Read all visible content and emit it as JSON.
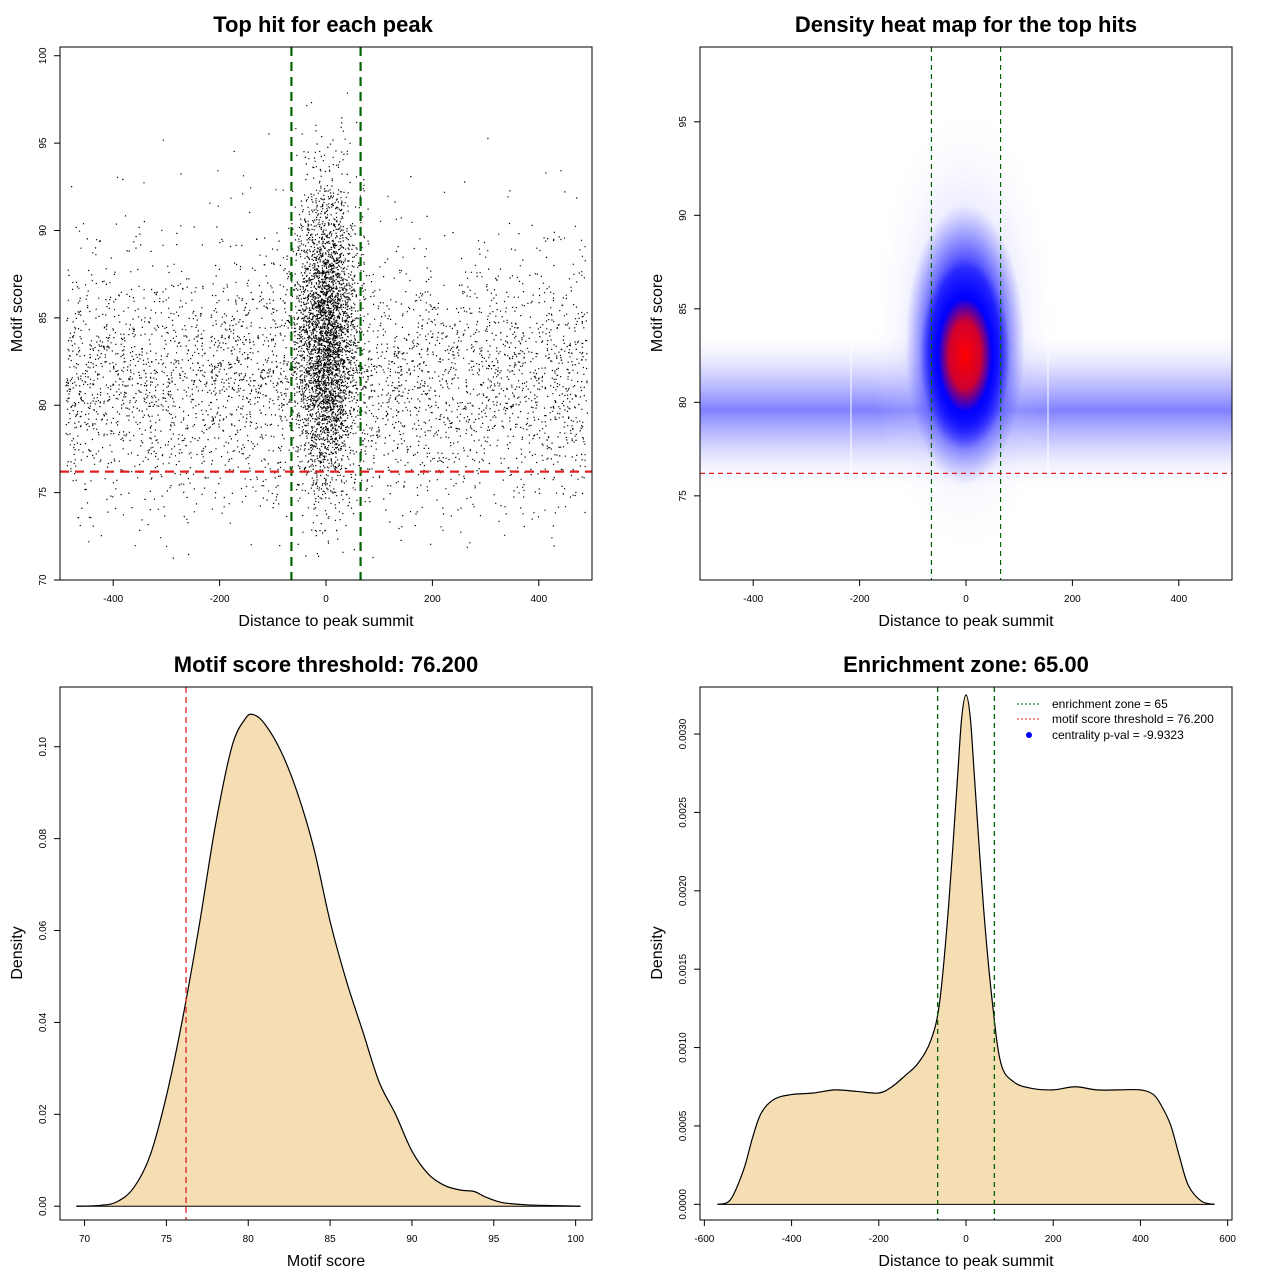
{
  "colors": {
    "threshold_line": "#e02020",
    "zone_line": "#006400",
    "density_fill": "#f5deb3",
    "heat_low": "#ffffff",
    "heat_mid": "#0000ff",
    "heat_high": "#ff0000",
    "legend_point": "#0000ff"
  },
  "chart_data": [
    {
      "id": "scatter",
      "type": "scatter",
      "title": "Top hit for each peak",
      "xlabel": "Distance to peak summit",
      "ylabel": "Motif score",
      "xlim": [
        -500,
        500
      ],
      "ylim": [
        70,
        100.5
      ],
      "xticks": [
        -400,
        -200,
        0,
        200,
        400
      ],
      "yticks": [
        70,
        75,
        80,
        85,
        90,
        95,
        100
      ],
      "hlines": [
        76.2
      ],
      "vlines": [
        -65,
        65
      ],
      "points_description_series": [
        {
          "name": "",
          "x_range": [
            -490,
            490
          ],
          "y_center": 81,
          "central_cluster_x": [
            -60,
            60
          ],
          "central_cluster_y_center": 84
        }
      ]
    },
    {
      "id": "heatmap",
      "type": "heatmap",
      "title": "Density heat map for the top hits",
      "xlabel": "Distance to peak summit",
      "ylabel": "Motif score",
      "xlim": [
        -500,
        500
      ],
      "ylim": [
        70.5,
        99
      ],
      "xticks": [
        -400,
        -200,
        0,
        200,
        400
      ],
      "yticks": [
        75,
        80,
        85,
        90,
        95
      ],
      "hlines": [
        76.2
      ],
      "vlines": [
        -65,
        65
      ],
      "hotspot": {
        "x": 0,
        "y": 82.8
      }
    },
    {
      "id": "score_density",
      "type": "area",
      "title": "Motif score threshold: 76.200",
      "xlabel": "Motif score",
      "ylabel": "Density",
      "xlim": [
        68.5,
        101
      ],
      "ylim": [
        -0.003,
        0.113
      ],
      "xticks": [
        70,
        75,
        80,
        85,
        90,
        95,
        100
      ],
      "yticks": [
        0.0,
        0.02,
        0.04,
        0.06,
        0.08,
        0.1
      ],
      "ytick_labels": [
        "0.00",
        "0.02",
        "0.04",
        "0.06",
        "0.08",
        "0.10"
      ],
      "vlines": [
        76.2
      ],
      "x": [
        69.5,
        71,
        72,
        73,
        74,
        75,
        76,
        77,
        78,
        79,
        79.8,
        80.3,
        81,
        82,
        83,
        84,
        85,
        86,
        87,
        88,
        89,
        90,
        91,
        92,
        93,
        93.8,
        94.5,
        95.5,
        97,
        99,
        100.3
      ],
      "y": [
        0.0,
        0.0002,
        0.001,
        0.004,
        0.011,
        0.024,
        0.041,
        0.061,
        0.083,
        0.1,
        0.106,
        0.107,
        0.105,
        0.099,
        0.09,
        0.078,
        0.062,
        0.049,
        0.038,
        0.027,
        0.02,
        0.012,
        0.007,
        0.0045,
        0.0035,
        0.0032,
        0.002,
        0.0008,
        0.0003,
        0.0001,
        0.0
      ]
    },
    {
      "id": "distance_density",
      "type": "area",
      "title": "Enrichment zone: 65.00",
      "xlabel": "Distance to peak summit",
      "ylabel": "Density",
      "xlim": [
        -610,
        610
      ],
      "ylim": [
        -0.0001,
        0.0033
      ],
      "xticks": [
        -600,
        -400,
        -200,
        0,
        200,
        400,
        600
      ],
      "yticks": [
        0.0,
        0.0005,
        0.001,
        0.0015,
        0.002,
        0.0025,
        0.003
      ],
      "ytick_labels": [
        "0.0000",
        "0.0005",
        "0.0010",
        "0.0015",
        "0.0020",
        "0.0025",
        "0.0030"
      ],
      "vlines": [
        -65,
        65
      ],
      "x": [
        -570,
        -540,
        -510,
        -490,
        -470,
        -440,
        -400,
        -350,
        -300,
        -250,
        -200,
        -170,
        -140,
        -110,
        -80,
        -60,
        -40,
        -20,
        -10,
        0,
        10,
        20,
        40,
        60,
        80,
        110,
        150,
        200,
        250,
        300,
        350,
        400,
        430,
        450,
        470,
        490,
        510,
        540,
        570
      ],
      "y": [
        0.0,
        3e-05,
        0.00022,
        0.00042,
        0.00058,
        0.00067,
        0.0007,
        0.00071,
        0.00073,
        0.00072,
        0.00071,
        0.00075,
        0.00082,
        0.0009,
        0.00105,
        0.0013,
        0.0019,
        0.0027,
        0.0031,
        0.00325,
        0.0031,
        0.0027,
        0.0019,
        0.0013,
        0.0009,
        0.00078,
        0.00074,
        0.00073,
        0.00075,
        0.00073,
        0.00073,
        0.00073,
        0.0007,
        0.00062,
        0.0005,
        0.0003,
        0.00012,
        2e-05,
        0.0
      ]
    }
  ],
  "legend": {
    "items": [
      {
        "label": "enrichment zone = 65",
        "kind": "dotted-line",
        "color": "#006400"
      },
      {
        "label": "motif score threshold = 76.200",
        "kind": "dotted-line",
        "color": "#e02020"
      },
      {
        "label": "centrality p-val = -9.9323",
        "kind": "point",
        "color": "#0000ff"
      }
    ]
  }
}
